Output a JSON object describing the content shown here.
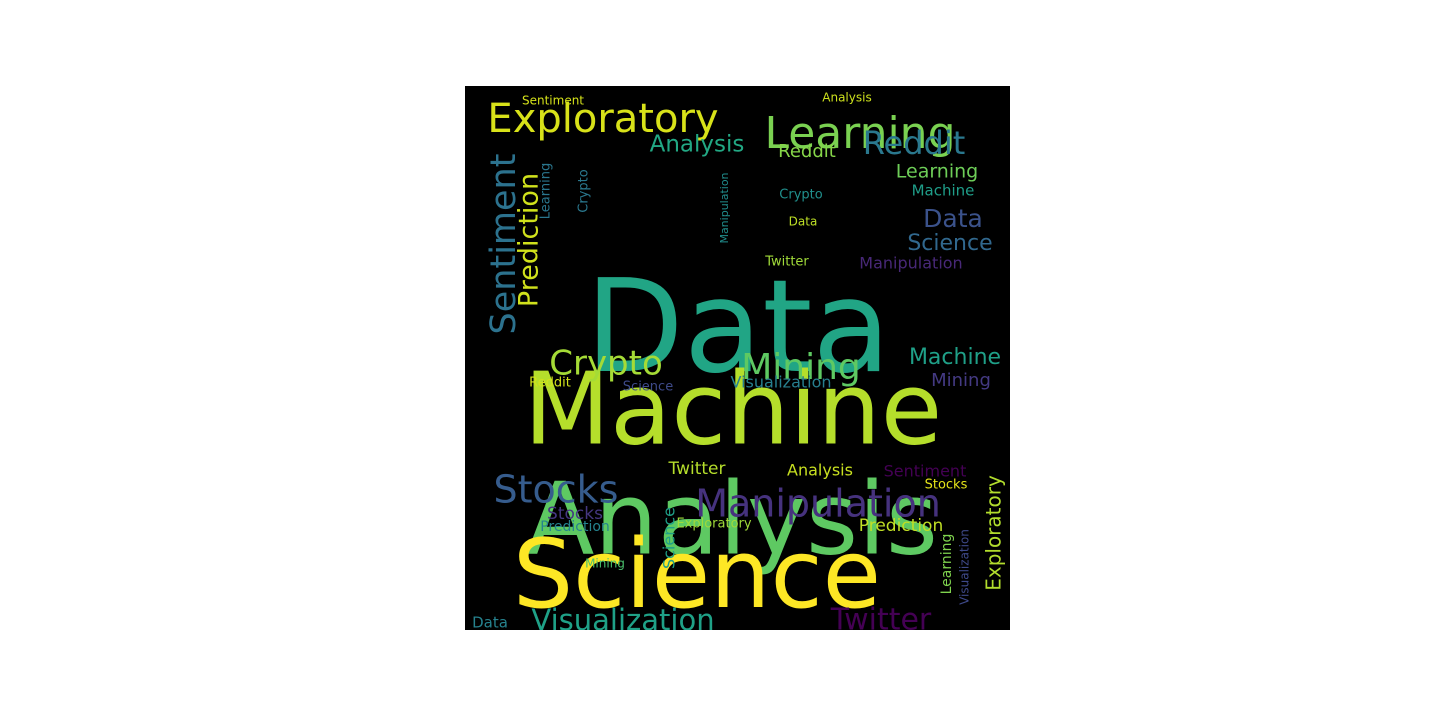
{
  "wordcloud": {
    "background": "#000000",
    "words": [
      {
        "text": "Data",
        "color": "#21a585"
      },
      {
        "text": "Machine",
        "color": "#b5de2b"
      },
      {
        "text": "Analysis",
        "color": "#5ec962"
      },
      {
        "text": "Science",
        "color": "#fde725"
      },
      {
        "text": "Exploratory",
        "color": "#d8e219"
      },
      {
        "text": "Learning",
        "color": "#7ad151"
      },
      {
        "text": "Sentiment",
        "color": "#2c728e"
      },
      {
        "text": "Prediction",
        "color": "#d0e11c"
      },
      {
        "text": "Reddit",
        "color": "#2a788e"
      },
      {
        "text": "Analysis",
        "color": "#22a884"
      },
      {
        "text": "Reddit",
        "color": "#86d549"
      },
      {
        "text": "Learning",
        "color": "#6ece58"
      },
      {
        "text": "Machine",
        "color": "#1f9e89"
      },
      {
        "text": "Data",
        "color": "#3b528b"
      },
      {
        "text": "Science",
        "color": "#31688e"
      },
      {
        "text": "Crypto",
        "color": "#2a788e"
      },
      {
        "text": "Data",
        "color": "#bddf26"
      },
      {
        "text": "Manipulation",
        "color": "#482878"
      },
      {
        "text": "Twitter",
        "color": "#a0da39"
      },
      {
        "text": "Crypto",
        "color": "#21908d"
      },
      {
        "text": "Crypto",
        "color": "#a5db36"
      },
      {
        "text": "Mining",
        "color": "#5ec962"
      },
      {
        "text": "Machine",
        "color": "#1fa088"
      },
      {
        "text": "Mining",
        "color": "#443a83"
      },
      {
        "text": "Visualization",
        "color": "#277f8e"
      },
      {
        "text": "Reddit",
        "color": "#d2e21b"
      },
      {
        "text": "Science",
        "color": "#3e4a89"
      },
      {
        "text": "Stocks",
        "color": "#365c8d"
      },
      {
        "text": "Twitter",
        "color": "#b5de2b"
      },
      {
        "text": "Analysis",
        "color": "#c8e020"
      },
      {
        "text": "Sentiment",
        "color": "#440154"
      },
      {
        "text": "Manipulation",
        "color": "#46327e"
      },
      {
        "text": "Stocks",
        "color": "#e5e419"
      },
      {
        "text": "Stocks",
        "color": "#453781"
      },
      {
        "text": "Prediction",
        "color": "#25838e"
      },
      {
        "text": "Exploratory",
        "color": "#9fda3a"
      },
      {
        "text": "Prediction",
        "color": "#c0df25"
      },
      {
        "text": "Mining",
        "color": "#4ac16d"
      },
      {
        "text": "Visualization",
        "color": "#1fa187"
      },
      {
        "text": "Twitter",
        "color": "#440154"
      },
      {
        "text": "Data",
        "color": "#26828e"
      },
      {
        "text": "Sentiment",
        "color": "#d5e21a"
      },
      {
        "text": "Analysis",
        "color": "#cde11d"
      },
      {
        "text": "Learning",
        "color": "#2a768e"
      },
      {
        "text": "Manipulation",
        "color": "#218e8d"
      },
      {
        "text": "Science",
        "color": "#1fa088"
      },
      {
        "text": "Exploratory",
        "color": "#b2dd2d"
      },
      {
        "text": "Learning",
        "color": "#7fd34e"
      },
      {
        "text": "Visualization",
        "color": "#3e4989"
      }
    ]
  }
}
